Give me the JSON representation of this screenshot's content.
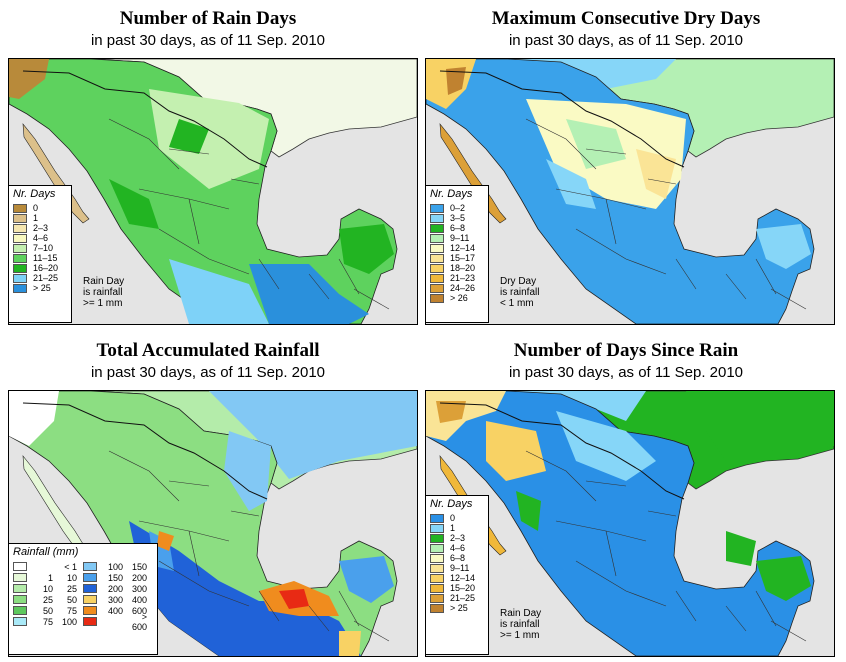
{
  "panels": [
    {
      "id": "rain-days",
      "title": "Number of Rain Days",
      "subtitle": "in past 30 days, as of  11 Sep. 2010",
      "legend_title": "Nr. Days",
      "legend": [
        {
          "label": "0",
          "color": "#b88a3a"
        },
        {
          "label": "1",
          "color": "#dcc08a"
        },
        {
          "label": "2–3",
          "color": "#f5e6b0"
        },
        {
          "label": "4–6",
          "color": "#f8f8c0"
        },
        {
          "label": "7–10",
          "color": "#c4f0b0"
        },
        {
          "label": "11–15",
          "color": "#5ed25e"
        },
        {
          "label": "16–20",
          "color": "#22b422"
        },
        {
          "label": "21–25",
          "color": "#7ed2f8"
        },
        {
          "label": "> 25",
          "color": "#2a90dc"
        }
      ],
      "note": [
        "Rain Day",
        "is rainfall",
        ">= 1 mm"
      ]
    },
    {
      "id": "dry-days",
      "title": "Maximum Consecutive Dry Days",
      "subtitle": "in past 30 days, as of  11 Sep. 2010",
      "legend_title": "Nr. Days",
      "legend": [
        {
          "label": "0–2",
          "color": "#3aa2ea"
        },
        {
          "label": "3–5",
          "color": "#86d6f8"
        },
        {
          "label": "6–8",
          "color": "#22b422"
        },
        {
          "label": "9–11",
          "color": "#b4f0b4"
        },
        {
          "label": "12–14",
          "color": "#fafac4"
        },
        {
          "label": "15–17",
          "color": "#fae496"
        },
        {
          "label": "18–20",
          "color": "#f8d264"
        },
        {
          "label": "21–23",
          "color": "#f0b83a"
        },
        {
          "label": "24–26",
          "color": "#dca038"
        },
        {
          "label": "> 26",
          "color": "#c08230"
        }
      ],
      "note": [
        "Dry Day",
        "is rainfall",
        "< 1 mm"
      ]
    },
    {
      "id": "total-rain",
      "title": "Total Accumulated Rainfall",
      "subtitle": "in past 30 days, as of  11 Sep. 2010",
      "legend_title": "Rainfall (mm)",
      "legend_left": [
        {
          "lo": "",
          "hi": "< 1",
          "color": "#ffffff"
        },
        {
          "lo": "1",
          "hi": "10",
          "color": "#e6f8d8"
        },
        {
          "lo": "10",
          "hi": "25",
          "color": "#b4ecaa"
        },
        {
          "lo": "25",
          "hi": "50",
          "color": "#8cde82"
        },
        {
          "lo": "50",
          "hi": "75",
          "color": "#5ec85e"
        },
        {
          "lo": "75",
          "hi": "100",
          "color": "#aaeaf8"
        }
      ],
      "legend_right": [
        {
          "lo": "100",
          "hi": "150",
          "color": "#82c8f4"
        },
        {
          "lo": "150",
          "hi": "200",
          "color": "#4aa0ec"
        },
        {
          "lo": "200",
          "hi": "300",
          "color": "#2062d8"
        },
        {
          "lo": "300",
          "hi": "400",
          "color": "#f8d264"
        },
        {
          "lo": "400",
          "hi": "600",
          "color": "#f08c1e"
        },
        {
          "lo": "",
          "hi": "> 600",
          "color": "#e82a14"
        }
      ]
    },
    {
      "id": "days-since-rain",
      "title": "Number of Days Since Rain",
      "subtitle": "in past 30 days, as of  11 Sep. 2010",
      "legend_title": "Nr. Days",
      "legend": [
        {
          "label": "0",
          "color": "#2a90e6"
        },
        {
          "label": "1",
          "color": "#86d6f8"
        },
        {
          "label": "2–3",
          "color": "#22b422"
        },
        {
          "label": "4–6",
          "color": "#b4f0b4"
        },
        {
          "label": "6–8",
          "color": "#fafac4"
        },
        {
          "label": "9–11",
          "color": "#fae496"
        },
        {
          "label": "12–14",
          "color": "#f8d264"
        },
        {
          "label": "15–20",
          "color": "#f0b83a"
        },
        {
          "label": "21–25",
          "color": "#dca038"
        },
        {
          "label": "> 25",
          "color": "#c08230"
        }
      ],
      "note": [
        "Rain Day",
        "is rainfall",
        ">= 1 mm"
      ]
    }
  ]
}
